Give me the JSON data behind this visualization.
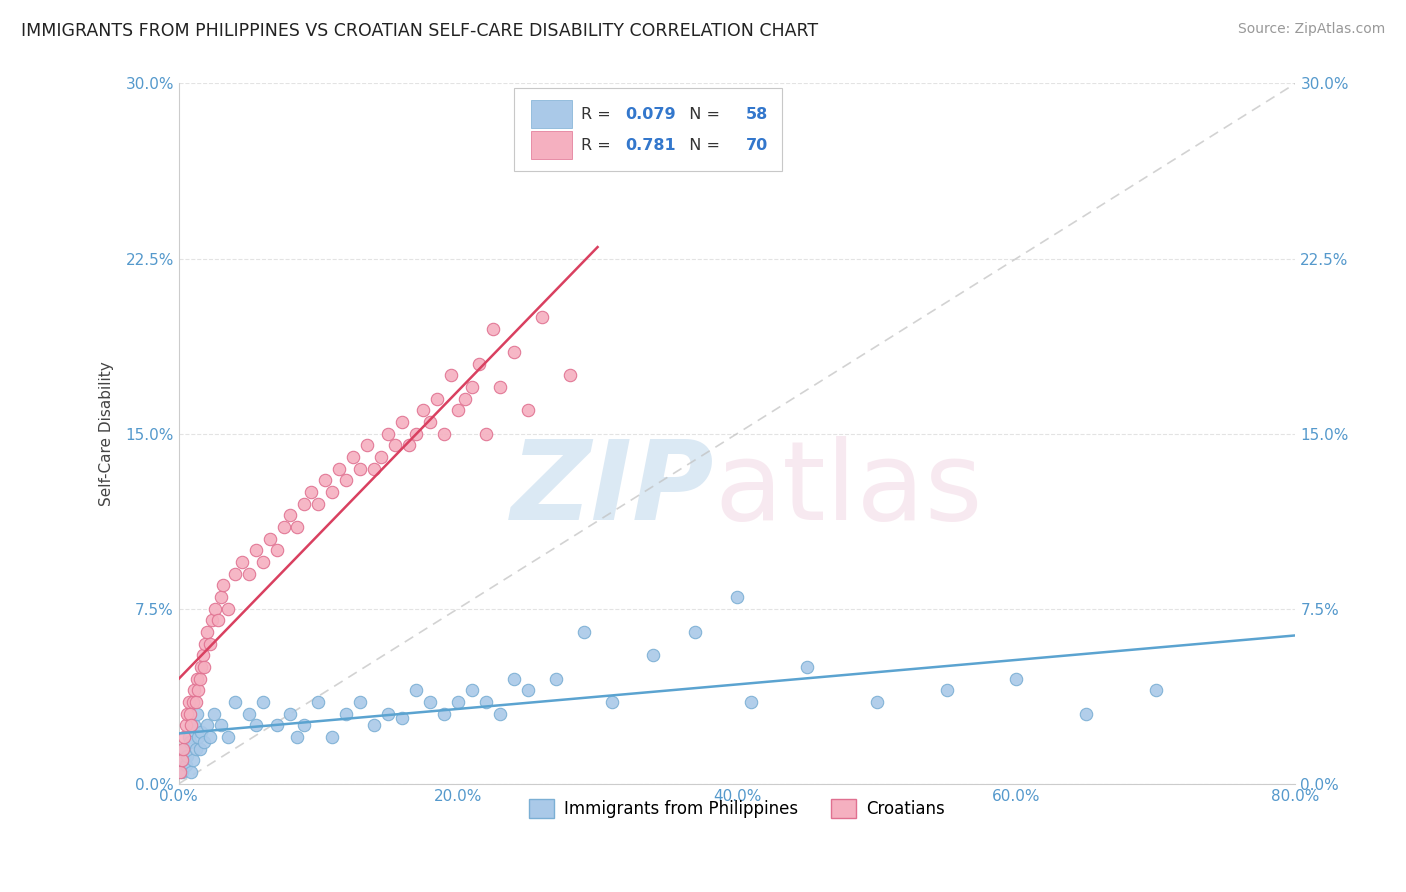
{
  "title": "IMMIGRANTS FROM PHILIPPINES VS CROATIAN SELF-CARE DISABILITY CORRELATION CHART",
  "source": "Source: ZipAtlas.com",
  "ylabel": "Self-Care Disability",
  "legend_label_1": "Immigrants from Philippines",
  "legend_label_2": "Croatians",
  "R1": 0.079,
  "N1": 58,
  "R2": 0.781,
  "N2": 70,
  "color1": "#aac9e8",
  "color1_edge": "#7bafd4",
  "color2": "#f5b0c0",
  "color2_edge": "#e07090",
  "trendline1_color": "#5ba3d0",
  "trendline2_color": "#d94060",
  "ref_line_color": "#c0c0c0",
  "background_color": "#ffffff",
  "xlim": [
    0.0,
    80.0
  ],
  "ylim": [
    0.0,
    30.0
  ],
  "xticks": [
    0.0,
    20.0,
    40.0,
    60.0,
    80.0
  ],
  "yticks": [
    0.0,
    7.5,
    15.0,
    22.5,
    30.0
  ],
  "scatter1_x": [
    0.2,
    0.3,
    0.4,
    0.5,
    0.6,
    0.7,
    0.8,
    0.9,
    1.0,
    1.1,
    1.2,
    1.3,
    1.4,
    1.5,
    1.6,
    1.8,
    2.0,
    2.2,
    2.5,
    3.0,
    3.5,
    4.0,
    5.0,
    5.5,
    6.0,
    7.0,
    8.0,
    8.5,
    9.0,
    10.0,
    11.0,
    12.0,
    13.0,
    14.0,
    15.0,
    16.0,
    17.0,
    18.0,
    19.0,
    20.0,
    21.0,
    22.0,
    23.0,
    24.0,
    25.0,
    27.0,
    29.0,
    31.0,
    34.0,
    37.0,
    41.0,
    45.0,
    50.0,
    55.0,
    60.0,
    65.0,
    70.0,
    40.0
  ],
  "scatter1_y": [
    0.5,
    1.0,
    1.5,
    0.8,
    1.2,
    2.0,
    1.8,
    0.5,
    1.0,
    2.5,
    1.5,
    3.0,
    2.0,
    1.5,
    2.2,
    1.8,
    2.5,
    2.0,
    3.0,
    2.5,
    2.0,
    3.5,
    3.0,
    2.5,
    3.5,
    2.5,
    3.0,
    2.0,
    2.5,
    3.5,
    2.0,
    3.0,
    3.5,
    2.5,
    3.0,
    2.8,
    4.0,
    3.5,
    3.0,
    3.5,
    4.0,
    3.5,
    3.0,
    4.5,
    4.0,
    4.5,
    6.5,
    3.5,
    5.5,
    6.5,
    3.5,
    5.0,
    3.5,
    4.0,
    4.5,
    3.0,
    4.0,
    8.0
  ],
  "scatter2_x": [
    0.1,
    0.2,
    0.3,
    0.4,
    0.5,
    0.6,
    0.7,
    0.8,
    0.9,
    1.0,
    1.1,
    1.2,
    1.3,
    1.4,
    1.5,
    1.6,
    1.7,
    1.8,
    1.9,
    2.0,
    2.2,
    2.4,
    2.6,
    2.8,
    3.0,
    3.2,
    3.5,
    4.0,
    4.5,
    5.0,
    5.5,
    6.0,
    6.5,
    7.0,
    7.5,
    8.0,
    8.5,
    9.0,
    9.5,
    10.0,
    10.5,
    11.0,
    11.5,
    12.0,
    12.5,
    13.0,
    13.5,
    14.0,
    14.5,
    15.0,
    15.5,
    16.0,
    16.5,
    17.0,
    17.5,
    18.0,
    18.5,
    19.0,
    19.5,
    20.0,
    20.5,
    21.0,
    21.5,
    22.0,
    22.5,
    23.0,
    24.0,
    25.0,
    26.0,
    28.0
  ],
  "scatter2_y": [
    0.5,
    1.0,
    1.5,
    2.0,
    2.5,
    3.0,
    3.5,
    3.0,
    2.5,
    3.5,
    4.0,
    3.5,
    4.5,
    4.0,
    4.5,
    5.0,
    5.5,
    5.0,
    6.0,
    6.5,
    6.0,
    7.0,
    7.5,
    7.0,
    8.0,
    8.5,
    7.5,
    9.0,
    9.5,
    9.0,
    10.0,
    9.5,
    10.5,
    10.0,
    11.0,
    11.5,
    11.0,
    12.0,
    12.5,
    12.0,
    13.0,
    12.5,
    13.5,
    13.0,
    14.0,
    13.5,
    14.5,
    13.5,
    14.0,
    15.0,
    14.5,
    15.5,
    14.5,
    15.0,
    16.0,
    15.5,
    16.5,
    15.0,
    17.5,
    16.0,
    16.5,
    17.0,
    18.0,
    15.0,
    19.5,
    17.0,
    18.5,
    16.0,
    20.0,
    17.5
  ]
}
